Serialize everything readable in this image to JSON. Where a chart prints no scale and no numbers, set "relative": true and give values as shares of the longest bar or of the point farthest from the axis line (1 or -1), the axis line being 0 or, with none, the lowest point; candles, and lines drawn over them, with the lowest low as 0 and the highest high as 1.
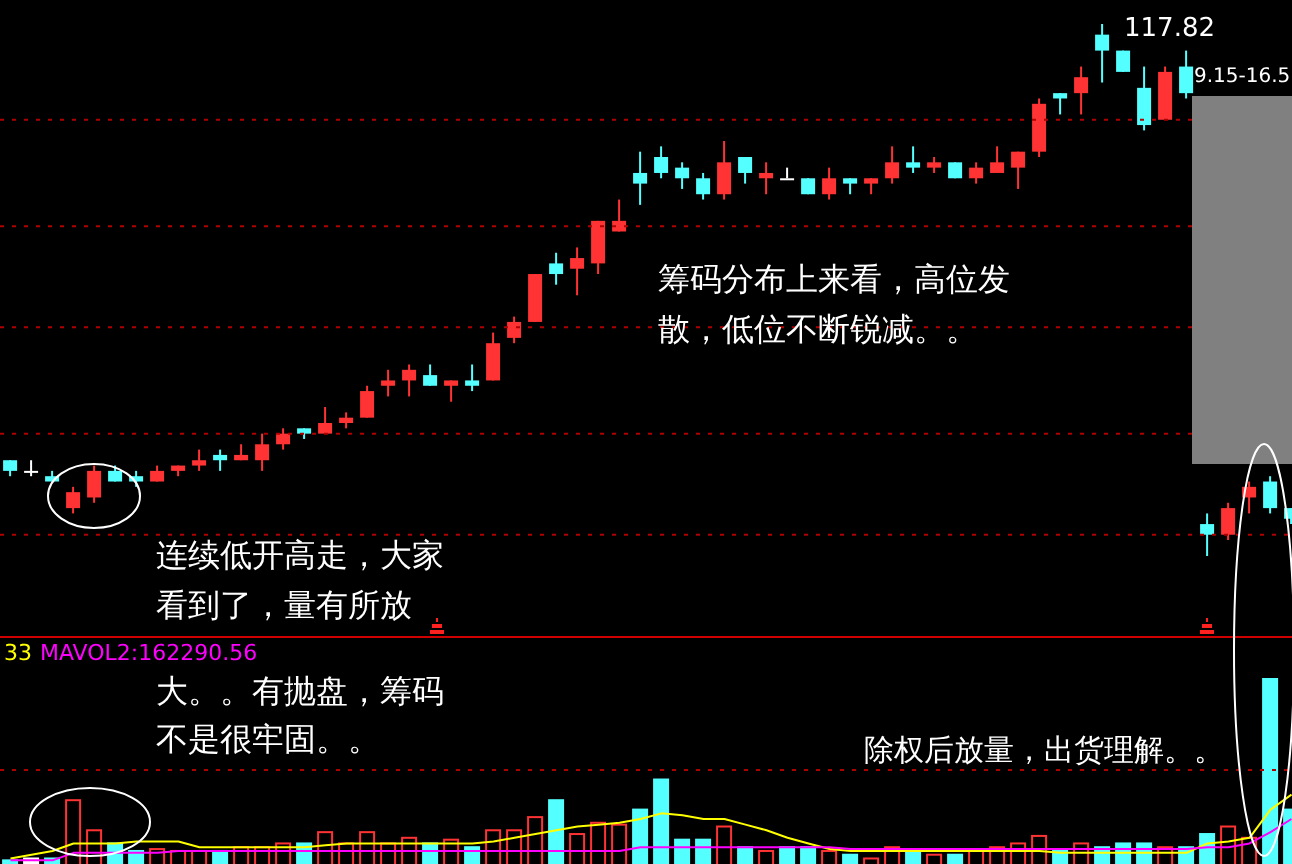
{
  "chart_data": [
    {
      "type": "candlestick",
      "relative": true,
      "tick_labels": false,
      "ref_lines": [
        {
          "axis": "y",
          "value": 0.82,
          "color": "#b00000",
          "line_style": "dotted"
        },
        {
          "axis": "y",
          "value": 0.62,
          "color": "#b00000",
          "line_style": "dotted"
        },
        {
          "axis": "y",
          "value": 0.43,
          "color": "#b00000",
          "line_style": "dotted"
        },
        {
          "axis": "y",
          "value": 0.23,
          "color": "#b00000",
          "line_style": "dotted"
        },
        {
          "axis": "y",
          "value": 0.04,
          "color": "#b00000",
          "line_style": "dotted"
        }
      ],
      "categories": [
        null,
        null,
        null,
        null,
        null,
        null,
        null,
        null,
        null,
        null,
        null,
        null,
        null,
        null,
        null,
        null,
        null,
        null,
        null,
        null,
        null,
        null,
        null,
        null,
        null,
        null,
        null,
        null,
        null,
        null,
        null,
        null,
        null,
        null,
        null,
        null,
        null,
        null,
        null,
        null,
        null,
        null,
        null,
        null,
        null,
        null,
        null,
        null,
        null,
        null,
        null,
        null,
        null,
        null,
        null,
        null,
        null,
        null,
        null,
        null,
        null,
        null
      ],
      "ohlc": [
        [
          0.18,
          0.18,
          0.15,
          0.16
        ],
        [
          0.16,
          0.18,
          0.15,
          0.16
        ],
        [
          0.15,
          0.16,
          0.14,
          0.14
        ],
        [
          0.09,
          0.13,
          0.08,
          0.12
        ],
        [
          0.11,
          0.17,
          0.1,
          0.16
        ],
        [
          0.16,
          0.17,
          0.14,
          0.14
        ],
        [
          0.15,
          0.16,
          0.13,
          0.14
        ],
        [
          0.14,
          0.17,
          0.14,
          0.16
        ],
        [
          0.16,
          0.17,
          0.15,
          0.17
        ],
        [
          0.17,
          0.2,
          0.16,
          0.18
        ],
        [
          0.19,
          0.2,
          0.16,
          0.18
        ],
        [
          0.18,
          0.21,
          0.18,
          0.19
        ],
        [
          0.18,
          0.23,
          0.16,
          0.21
        ],
        [
          0.21,
          0.24,
          0.2,
          0.23
        ],
        [
          0.24,
          0.24,
          0.22,
          0.23
        ],
        [
          0.23,
          0.28,
          0.23,
          0.25
        ],
        [
          0.25,
          0.27,
          0.24,
          0.26
        ],
        [
          0.26,
          0.32,
          0.26,
          0.31
        ],
        [
          0.32,
          0.35,
          0.3,
          0.33
        ],
        [
          0.33,
          0.36,
          0.3,
          0.35
        ],
        [
          0.34,
          0.36,
          0.32,
          0.32
        ],
        [
          0.32,
          0.33,
          0.29,
          0.33
        ],
        [
          0.33,
          0.36,
          0.31,
          0.32
        ],
        [
          0.33,
          0.42,
          0.33,
          0.4
        ],
        [
          0.41,
          0.45,
          0.4,
          0.44
        ],
        [
          0.44,
          0.53,
          0.44,
          0.53
        ],
        [
          0.55,
          0.57,
          0.51,
          0.53
        ],
        [
          0.54,
          0.58,
          0.49,
          0.56
        ],
        [
          0.55,
          0.63,
          0.53,
          0.63
        ],
        [
          0.61,
          0.67,
          0.61,
          0.63
        ],
        [
          0.72,
          0.76,
          0.66,
          0.7
        ],
        [
          0.75,
          0.77,
          0.71,
          0.72
        ],
        [
          0.73,
          0.74,
          0.69,
          0.71
        ],
        [
          0.71,
          0.72,
          0.67,
          0.68
        ],
        [
          0.68,
          0.78,
          0.67,
          0.74
        ],
        [
          0.75,
          0.75,
          0.7,
          0.72
        ],
        [
          0.71,
          0.74,
          0.68,
          0.72
        ],
        [
          0.71,
          0.73,
          0.71,
          0.71
        ],
        [
          0.71,
          0.71,
          0.68,
          0.68
        ],
        [
          0.68,
          0.73,
          0.67,
          0.71
        ],
        [
          0.71,
          0.71,
          0.68,
          0.7
        ],
        [
          0.7,
          0.71,
          0.68,
          0.71
        ],
        [
          0.71,
          0.77,
          0.7,
          0.74
        ],
        [
          0.74,
          0.77,
          0.72,
          0.73
        ],
        [
          0.73,
          0.75,
          0.72,
          0.74
        ],
        [
          0.74,
          0.74,
          0.71,
          0.71
        ],
        [
          0.71,
          0.74,
          0.7,
          0.73
        ],
        [
          0.72,
          0.77,
          0.72,
          0.74
        ],
        [
          0.73,
          0.76,
          0.69,
          0.76
        ],
        [
          0.76,
          0.86,
          0.75,
          0.85
        ],
        [
          0.87,
          0.87,
          0.83,
          0.86
        ],
        [
          0.87,
          0.92,
          0.83,
          0.9
        ],
        [
          0.98,
          1,
          0.89,
          0.95
        ],
        [
          0.95,
          0.95,
          0.91,
          0.91
        ],
        [
          0.88,
          0.92,
          0.8,
          0.81
        ],
        [
          0.82,
          0.92,
          0.82,
          0.91
        ],
        [
          0.92,
          0.95,
          0.86,
          0.87
        ],
        [
          0.06,
          0.08,
          0,
          0.04
        ],
        [
          0.04,
          0.1,
          0.03,
          0.09
        ],
        [
          0.11,
          0.14,
          0.08,
          0.13
        ],
        [
          0.14,
          0.15,
          0.08,
          0.09
        ],
        [
          0.09,
          0.09,
          0.06,
          0.07
        ]
      ],
      "colors": [
        "#54ffff",
        "#ffffff",
        "#54ffff",
        "#ff3333",
        "#ff3333",
        "#54ffff",
        "#54ffff",
        "#ff3333",
        "#ff3333",
        "#ff3333",
        "#54ffff",
        "#ff3333",
        "#ff3333",
        "#ff3333",
        "#54ffff",
        "#ff3333",
        "#ff3333",
        "#ff3333",
        "#ff3333",
        "#ff3333",
        "#54ffff",
        "#ff3333",
        "#54ffff",
        "#ff3333",
        "#ff3333",
        "#ff3333",
        "#54ffff",
        "#ff3333",
        "#ff3333",
        "#ff3333",
        "#54ffff",
        "#54ffff",
        "#54ffff",
        "#54ffff",
        "#ff3333",
        "#54ffff",
        "#ff3333",
        "#ffffff",
        "#54ffff",
        "#ff3333",
        "#54ffff",
        "#ff3333",
        "#ff3333",
        "#54ffff",
        "#ff3333",
        "#54ffff",
        "#ff3333",
        "#ff3333",
        "#ff3333",
        "#ff3333",
        "#54ffff",
        "#ff3333",
        "#54ffff",
        "#54ffff",
        "#54ffff",
        "#ff3333",
        "#54ffff",
        "#54ffff",
        "#ff3333",
        "#ff3333",
        "#54ffff",
        "#54ffff"
      ],
      "annotations": [
        "117.82",
        "9.15-16.5",
        "筹码分布上来看，高位发",
        "散，低位不断锐减。。",
        "连续低开高走，大家",
        "看到了，量有所放"
      ]
    },
    {
      "type": "bar",
      "relative": true,
      "tick_labels": false,
      "ref_lines": [
        {
          "axis": "y",
          "value": 0.51,
          "color": "#b00000",
          "line_style": "dotted"
        }
      ],
      "categories": [
        null,
        null,
        null,
        null,
        null,
        null,
        null,
        null,
        null,
        null,
        null,
        null,
        null,
        null,
        null,
        null,
        null,
        null,
        null,
        null,
        null,
        null,
        null,
        null,
        null,
        null,
        null,
        null,
        null,
        null,
        null,
        null,
        null,
        null,
        null,
        null,
        null,
        null,
        null,
        null,
        null,
        null,
        null,
        null,
        null,
        null,
        null,
        null,
        null,
        null,
        null,
        null,
        null,
        null,
        null,
        null,
        null,
        null,
        null,
        null,
        null,
        null
      ],
      "series": [
        {
          "type": "bar",
          "colors": [
            "#54ffff",
            "#ffffff",
            "#54ffff",
            "#ff3333",
            "#ff3333",
            "#54ffff",
            "#54ffff",
            "#ff3333",
            "#ff3333",
            "#ff3333",
            "#54ffff",
            "#ff3333",
            "#ff3333",
            "#ff3333",
            "#54ffff",
            "#ff3333",
            "#ff3333",
            "#ff3333",
            "#ff3333",
            "#ff3333",
            "#54ffff",
            "#ff3333",
            "#54ffff",
            "#ff3333",
            "#ff3333",
            "#ff3333",
            "#54ffff",
            "#ff3333",
            "#ff3333",
            "#ff3333",
            "#54ffff",
            "#54ffff",
            "#54ffff",
            "#54ffff",
            "#ff3333",
            "#54ffff",
            "#ff3333",
            "#54ffff",
            "#54ffff",
            "#ff3333",
            "#54ffff",
            "#ff3333",
            "#ff3333",
            "#54ffff",
            "#ff3333",
            "#54ffff",
            "#ff3333",
            "#ff3333",
            "#ff3333",
            "#ff3333",
            "#54ffff",
            "#ff3333",
            "#54ffff",
            "#54ffff",
            "#54ffff",
            "#ff3333",
            "#54ffff",
            "#54ffff",
            "#ff3333",
            "#ff3333",
            "#54ffff",
            "#54ffff"
          ],
          "values": [
            0.03,
            0.04,
            0.04,
            0.35,
            0.19,
            0.12,
            0.08,
            0.09,
            0.08,
            0.08,
            0.08,
            0.1,
            0.1,
            0.12,
            0.12,
            0.18,
            0.12,
            0.18,
            0.12,
            0.15,
            0.12,
            0.14,
            0.1,
            0.19,
            0.19,
            0.26,
            0.35,
            0.17,
            0.23,
            0.22,
            0.3,
            0.46,
            0.14,
            0.14,
            0.21,
            0.1,
            0.08,
            0.1,
            0.1,
            0.08,
            0.06,
            0.04,
            0.1,
            0.08,
            0.06,
            0.06,
            0.08,
            0.1,
            0.12,
            0.16,
            0.08,
            0.12,
            0.1,
            0.12,
            0.12,
            0.1,
            0.1,
            0.17,
            0.21,
            0.15,
            1,
            0.3
          ]
        },
        {
          "type": "line",
          "color": "#ffff00",
          "values": [
            0.04,
            0.06,
            0.08,
            0.12,
            0.12,
            0.12,
            0.13,
            0.13,
            0.13,
            0.1,
            0.1,
            0.1,
            0.1,
            0.1,
            0.1,
            0.11,
            0.12,
            0.12,
            0.12,
            0.12,
            0.12,
            0.12,
            0.12,
            0.13,
            0.15,
            0.17,
            0.19,
            0.21,
            0.22,
            0.23,
            0.25,
            0.28,
            0.27,
            0.25,
            0.25,
            0.22,
            0.19,
            0.15,
            0.12,
            0.09,
            0.08,
            0.08,
            0.08,
            0.08,
            0.08,
            0.08,
            0.08,
            0.08,
            0.08,
            0.08,
            0.07,
            0.07,
            0.07,
            0.07,
            0.07,
            0.07,
            0.07,
            0.12,
            0.13,
            0.15,
            0.3,
            0.38
          ]
        },
        {
          "type": "line",
          "color": "#ff00ff",
          "values": [
            0.03,
            0.03,
            0.03,
            0.07,
            0.07,
            0.07,
            0.07,
            0.07,
            0.08,
            0.08,
            0.08,
            0.08,
            0.08,
            0.08,
            0.08,
            0.08,
            0.08,
            0.08,
            0.08,
            0.08,
            0.08,
            0.08,
            0.08,
            0.08,
            0.08,
            0.08,
            0.08,
            0.08,
            0.08,
            0.08,
            0.1,
            0.1,
            0.1,
            0.1,
            0.1,
            0.1,
            0.1,
            0.1,
            0.1,
            0.1,
            0.09,
            0.09,
            0.09,
            0.09,
            0.09,
            0.09,
            0.09,
            0.09,
            0.09,
            0.09,
            0.09,
            0.09,
            0.09,
            0.09,
            0.09,
            0.09,
            0.09,
            0.1,
            0.1,
            0.12,
            0.18,
            0.25
          ]
        }
      ],
      "annotations": [
        "33",
        "MAVOL2:162290.56",
        "大。。有抛盘，筹码",
        "不是很牢固。。",
        "除权后放量，出货理解。。"
      ]
    }
  ]
}
